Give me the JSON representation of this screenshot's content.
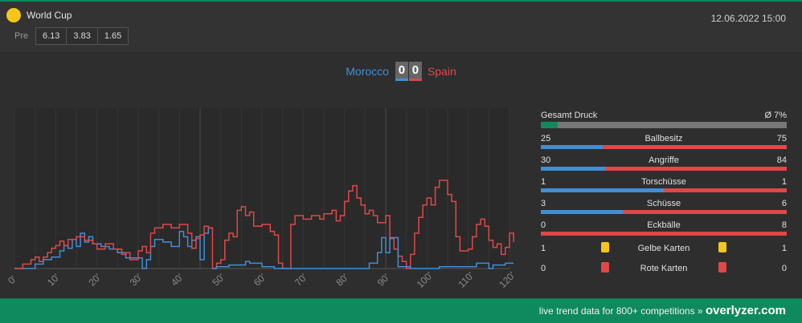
{
  "header": {
    "competition": "World Cup",
    "datetime": "12.06.2022 15:00",
    "pre_label": "Pre",
    "odds": [
      "6.13",
      "3.83",
      "1.65"
    ]
  },
  "match": {
    "home_team": "Morocco",
    "away_team": "Spain",
    "home_score": "0",
    "away_score": "0"
  },
  "colors": {
    "home": "#3f8fd8",
    "away": "#e04848",
    "accent": "#0f8a5f",
    "yellow_card": "#f5c518",
    "red_card": "#e04848"
  },
  "chart_data": {
    "type": "line",
    "x_ticks": [
      "0'",
      "10'",
      "20'",
      "30'",
      "40'",
      "50'",
      "60'",
      "70'",
      "80'",
      "90'",
      "100'",
      "110'",
      "120'"
    ],
    "xlim": [
      0,
      120
    ],
    "ylim": [
      0,
      100
    ],
    "series": [
      {
        "team": "home",
        "values": [
          [
            0,
            0
          ],
          [
            5,
            0
          ],
          [
            5,
            5
          ],
          [
            7,
            5
          ],
          [
            7,
            10
          ],
          [
            9,
            10
          ],
          [
            9,
            13
          ],
          [
            11,
            13
          ],
          [
            11,
            20
          ],
          [
            12,
            20
          ],
          [
            12,
            26
          ],
          [
            13,
            26
          ],
          [
            13,
            23
          ],
          [
            14,
            23
          ],
          [
            14,
            33
          ],
          [
            15,
            33
          ],
          [
            15,
            25
          ],
          [
            16,
            25
          ],
          [
            16,
            40
          ],
          [
            17,
            40
          ],
          [
            17,
            30
          ],
          [
            18,
            30
          ],
          [
            18,
            36
          ],
          [
            19,
            36
          ],
          [
            19,
            28
          ],
          [
            21,
            28
          ],
          [
            21,
            25
          ],
          [
            23,
            25
          ],
          [
            23,
            22
          ],
          [
            25,
            22
          ],
          [
            25,
            18
          ],
          [
            27,
            18
          ],
          [
            27,
            12
          ],
          [
            31,
            12
          ],
          [
            31,
            0
          ],
          [
            32,
            0
          ],
          [
            32,
            10
          ],
          [
            33,
            10
          ],
          [
            33,
            25
          ],
          [
            34,
            25
          ],
          [
            34,
            33
          ],
          [
            36,
            33
          ],
          [
            36,
            30
          ],
          [
            38,
            30
          ],
          [
            38,
            25
          ],
          [
            40,
            25
          ],
          [
            40,
            42
          ],
          [
            41,
            42
          ],
          [
            41,
            36
          ],
          [
            42,
            36
          ],
          [
            42,
            25
          ],
          [
            43,
            25
          ],
          [
            43,
            32
          ],
          [
            44,
            32
          ],
          [
            44,
            36
          ],
          [
            45,
            36
          ],
          [
            45,
            10
          ],
          [
            46,
            10
          ],
          [
            46,
            40
          ],
          [
            47,
            40
          ],
          [
            47,
            46
          ],
          [
            48,
            46
          ]
        ]
      },
      {
        "team": "away",
        "values": [
          [
            0,
            0
          ],
          [
            2,
            0
          ],
          [
            2,
            5
          ],
          [
            4,
            5
          ],
          [
            4,
            10
          ],
          [
            5,
            10
          ],
          [
            5,
            13
          ],
          [
            6,
            13
          ],
          [
            6,
            8
          ],
          [
            7,
            8
          ],
          [
            7,
            13
          ],
          [
            8,
            13
          ],
          [
            8,
            18
          ],
          [
            9,
            18
          ],
          [
            9,
            23
          ],
          [
            10,
            23
          ],
          [
            10,
            26
          ],
          [
            11,
            26
          ],
          [
            11,
            31
          ],
          [
            12,
            31
          ],
          [
            12,
            26
          ],
          [
            13,
            26
          ],
          [
            13,
            33
          ],
          [
            15,
            33
          ],
          [
            15,
            36
          ],
          [
            17,
            36
          ],
          [
            17,
            32
          ],
          [
            19,
            32
          ],
          [
            19,
            28
          ],
          [
            20,
            28
          ],
          [
            20,
            22
          ],
          [
            22,
            22
          ],
          [
            22,
            28
          ],
          [
            24,
            28
          ],
          [
            24,
            22
          ],
          [
            26,
            22
          ],
          [
            26,
            16
          ],
          [
            27,
            16
          ],
          [
            27,
            18
          ],
          [
            28,
            18
          ],
          [
            28,
            10
          ],
          [
            30,
            10
          ],
          [
            30,
            20
          ],
          [
            31,
            20
          ],
          [
            31,
            25
          ],
          [
            32,
            25
          ],
          [
            32,
            18
          ],
          [
            33,
            18
          ],
          [
            33,
            40
          ],
          [
            34,
            40
          ],
          [
            34,
            46
          ],
          [
            36,
            46
          ],
          [
            36,
            50
          ],
          [
            38,
            50
          ],
          [
            38,
            46
          ],
          [
            40,
            46
          ],
          [
            40,
            50
          ],
          [
            42,
            50
          ],
          [
            42,
            40
          ],
          [
            43,
            40
          ],
          [
            43,
            23
          ],
          [
            44,
            23
          ],
          [
            44,
            34
          ],
          [
            45,
            34
          ],
          [
            45,
            38
          ],
          [
            46,
            38
          ],
          [
            46,
            48
          ],
          [
            47,
            48
          ],
          [
            47,
            46
          ],
          [
            48,
            46
          ],
          [
            48,
            0
          ],
          [
            49,
            0
          ],
          [
            49,
            6
          ],
          [
            50,
            6
          ],
          [
            50,
            10
          ],
          [
            51,
            10
          ],
          [
            51,
            32
          ],
          [
            52,
            32
          ],
          [
            52,
            40
          ],
          [
            53,
            40
          ],
          [
            53,
            36
          ],
          [
            54,
            36
          ],
          [
            54,
            66
          ],
          [
            55,
            66
          ],
          [
            55,
            70
          ],
          [
            56,
            70
          ],
          [
            56,
            60
          ],
          [
            57,
            60
          ],
          [
            57,
            64
          ],
          [
            58,
            64
          ],
          [
            58,
            48
          ],
          [
            60,
            48
          ],
          [
            60,
            50
          ],
          [
            62,
            50
          ],
          [
            62,
            42
          ],
          [
            63,
            42
          ],
          [
            63,
            38
          ],
          [
            64,
            38
          ],
          [
            64,
            6
          ],
          [
            65,
            6
          ],
          [
            65,
            0
          ],
          [
            67,
            0
          ],
          [
            67,
            50
          ],
          [
            68,
            50
          ],
          [
            68,
            60
          ],
          [
            70,
            60
          ],
          [
            70,
            56
          ],
          [
            72,
            56
          ],
          [
            72,
            60
          ],
          [
            74,
            60
          ],
          [
            74,
            56
          ],
          [
            75,
            56
          ],
          [
            75,
            62
          ],
          [
            77,
            62
          ],
          [
            77,
            66
          ],
          [
            78,
            66
          ],
          [
            78,
            54
          ],
          [
            79,
            54
          ],
          [
            79,
            60
          ],
          [
            80,
            60
          ],
          [
            80,
            76
          ],
          [
            81,
            76
          ],
          [
            81,
            88
          ],
          [
            82,
            88
          ],
          [
            82,
            94
          ],
          [
            83,
            94
          ],
          [
            83,
            80
          ],
          [
            84,
            80
          ],
          [
            84,
            72
          ],
          [
            85,
            72
          ],
          [
            85,
            62
          ],
          [
            86,
            62
          ],
          [
            86,
            66
          ],
          [
            87,
            66
          ],
          [
            87,
            60
          ],
          [
            88,
            60
          ],
          [
            88,
            52
          ],
          [
            90,
            52
          ],
          [
            90,
            60
          ],
          [
            91,
            60
          ],
          [
            91,
            34
          ],
          [
            92,
            34
          ],
          [
            92,
            22
          ],
          [
            93,
            22
          ],
          [
            93,
            14
          ],
          [
            94,
            14
          ],
          [
            94,
            8
          ],
          [
            95,
            8
          ],
          [
            95,
            0
          ],
          [
            96,
            0
          ],
          [
            96,
            16
          ],
          [
            97,
            16
          ],
          [
            97,
            40
          ],
          [
            98,
            40
          ],
          [
            98,
            58
          ],
          [
            99,
            58
          ],
          [
            99,
            72
          ],
          [
            100,
            72
          ],
          [
            100,
            80
          ],
          [
            101,
            80
          ],
          [
            101,
            72
          ],
          [
            102,
            72
          ],
          [
            102,
            92
          ],
          [
            103,
            92
          ],
          [
            103,
            100
          ],
          [
            105,
            100
          ],
          [
            105,
            84
          ],
          [
            106,
            84
          ],
          [
            106,
            76
          ],
          [
            107,
            76
          ],
          [
            107,
            36
          ],
          [
            108,
            36
          ],
          [
            108,
            20
          ],
          [
            110,
            20
          ],
          [
            110,
            22
          ],
          [
            111,
            22
          ],
          [
            111,
            36
          ],
          [
            112,
            36
          ],
          [
            112,
            50
          ],
          [
            113,
            50
          ],
          [
            113,
            56
          ],
          [
            114,
            56
          ],
          [
            114,
            48
          ],
          [
            115,
            48
          ],
          [
            115,
            32
          ],
          [
            116,
            32
          ],
          [
            116,
            24
          ],
          [
            117,
            24
          ],
          [
            117,
            28
          ],
          [
            118,
            28
          ],
          [
            118,
            16
          ],
          [
            119,
            16
          ],
          [
            119,
            24
          ],
          [
            120,
            24
          ],
          [
            120,
            40
          ],
          [
            121,
            40
          ],
          [
            121,
            30
          ]
        ]
      },
      {
        "team": "home",
        "values": [
          [
            48,
            0
          ],
          [
            49,
            0
          ],
          [
            49,
            2
          ],
          [
            52,
            2
          ],
          [
            52,
            4
          ],
          [
            56,
            4
          ],
          [
            56,
            8
          ],
          [
            57,
            8
          ],
          [
            57,
            6
          ],
          [
            60,
            6
          ],
          [
            60,
            2
          ],
          [
            63,
            2
          ],
          [
            63,
            0
          ],
          [
            86,
            0
          ],
          [
            86,
            6
          ],
          [
            88,
            6
          ],
          [
            88,
            18
          ],
          [
            89,
            18
          ],
          [
            89,
            35
          ],
          [
            90,
            35
          ],
          [
            90,
            18
          ],
          [
            91,
            18
          ],
          [
            91,
            35
          ],
          [
            93,
            35
          ],
          [
            93,
            2
          ],
          [
            96,
            2
          ],
          [
            96,
            0
          ],
          [
            103,
            0
          ],
          [
            103,
            2
          ],
          [
            112,
            2
          ],
          [
            112,
            6
          ],
          [
            115,
            6
          ],
          [
            115,
            0
          ],
          [
            116,
            0
          ],
          [
            116,
            4
          ],
          [
            119,
            4
          ],
          [
            119,
            6
          ],
          [
            121,
            6
          ]
        ]
      }
    ]
  },
  "stats": {
    "pressure": {
      "label": "Gesamt Druck",
      "value": "Ø 7%",
      "fill": 0.07
    },
    "rows": [
      {
        "label": "Ballbesitz",
        "home": "25",
        "away": "75"
      },
      {
        "label": "Angriffe",
        "home": "30",
        "away": "84"
      },
      {
        "label": "Torschüsse",
        "home": "1",
        "away": "1"
      },
      {
        "label": "Schüsse",
        "home": "3",
        "away": "6"
      },
      {
        "label": "Eckbälle",
        "home": "0",
        "away": "8"
      }
    ],
    "cards": [
      {
        "label": "Gelbe Karten",
        "home": "1",
        "away": "1",
        "icon": "yellow-card-icon"
      },
      {
        "label": "Rote Karten",
        "home": "0",
        "away": "0",
        "icon": "red-card-icon"
      }
    ]
  },
  "footer": {
    "text": "live trend data for 800+ competitions »",
    "brand": "overlyzer.com"
  }
}
